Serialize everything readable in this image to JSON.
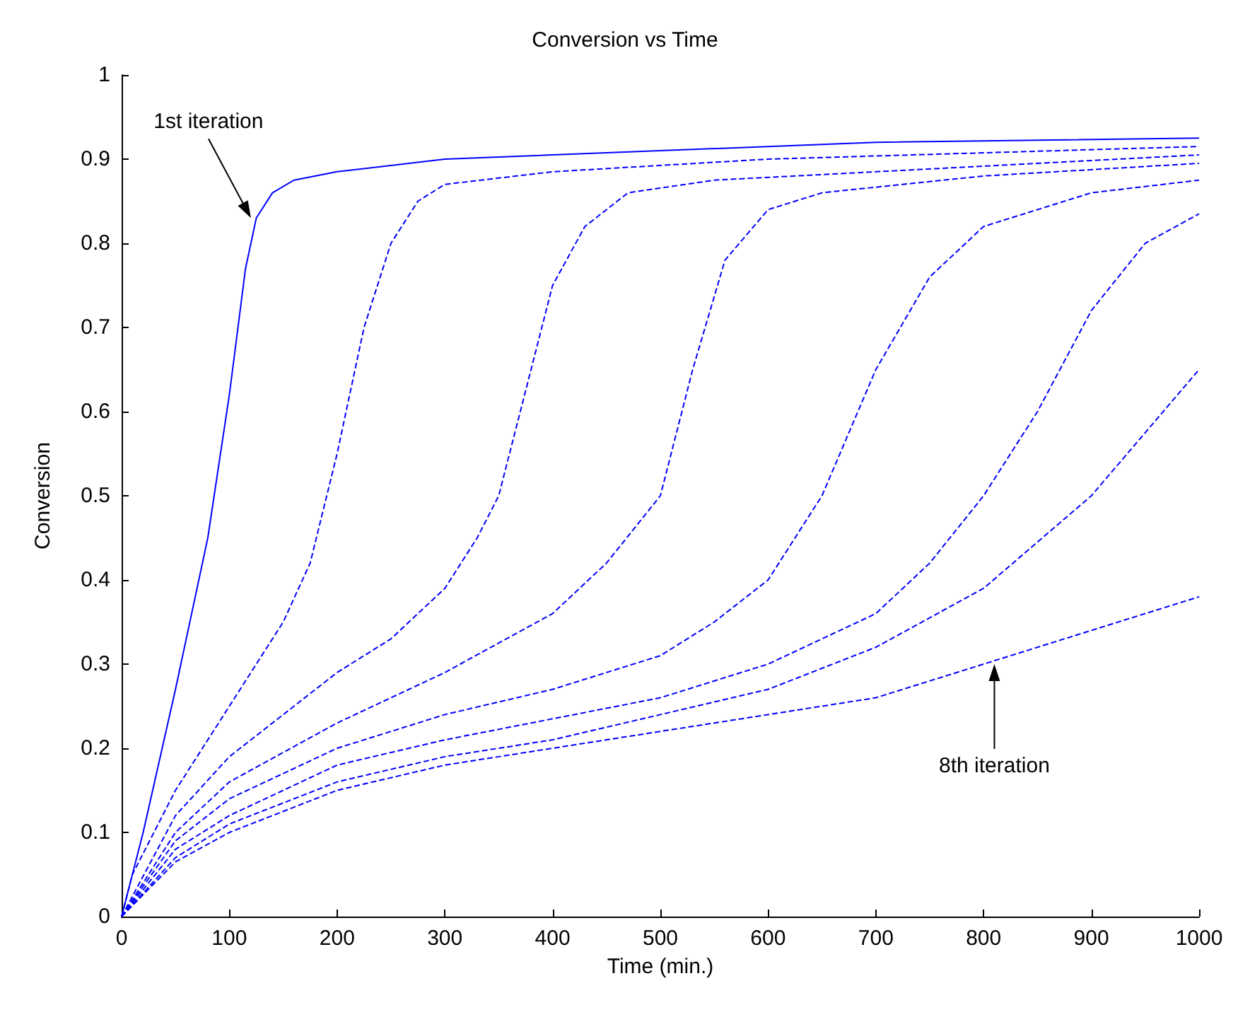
{
  "chart_data": {
    "type": "line",
    "title": "Conversion vs Time",
    "xlabel": "Time (min.)",
    "ylabel": "Conversion",
    "xlim": [
      0,
      1000
    ],
    "xticks": [
      0,
      100,
      200,
      300,
      400,
      500,
      600,
      700,
      800,
      900,
      1000
    ],
    "ylim": [
      0,
      1
    ],
    "yticks": [
      0,
      0.1,
      0.2,
      0.3,
      0.4,
      0.5,
      0.6,
      0.7,
      0.8,
      0.9,
      1
    ],
    "grid": false,
    "marker": "none",
    "series": [
      {
        "color": "#0000ff",
        "line_style": "solid",
        "x": [
          0,
          20,
          50,
          80,
          100,
          115,
          125,
          140,
          160,
          200,
          300,
          500,
          700,
          1000
        ],
        "values": [
          0,
          0.1,
          0.27,
          0.45,
          0.62,
          0.77,
          0.83,
          0.86,
          0.875,
          0.885,
          0.9,
          0.91,
          0.92,
          0.925
        ]
      },
      {
        "color": "#0000ff",
        "line_style": "dashed",
        "x": [
          0,
          10,
          50,
          100,
          150,
          175,
          200,
          225,
          250,
          275,
          300,
          400,
          600,
          1000
        ],
        "values": [
          0,
          0.05,
          0.15,
          0.25,
          0.35,
          0.42,
          0.55,
          0.7,
          0.8,
          0.85,
          0.87,
          0.885,
          0.9,
          0.915
        ]
      },
      {
        "color": "#0000ff",
        "line_style": "dashed",
        "x": [
          0,
          50,
          100,
          200,
          250,
          300,
          330,
          350,
          380,
          400,
          430,
          470,
          550,
          700,
          1000
        ],
        "values": [
          0,
          0.12,
          0.19,
          0.29,
          0.33,
          0.39,
          0.45,
          0.5,
          0.65,
          0.75,
          0.82,
          0.86,
          0.875,
          0.885,
          0.905
        ]
      },
      {
        "color": "#0000ff",
        "line_style": "dashed",
        "x": [
          0,
          50,
          100,
          200,
          300,
          400,
          450,
          500,
          530,
          560,
          600,
          650,
          800,
          1000
        ],
        "values": [
          0,
          0.1,
          0.16,
          0.23,
          0.29,
          0.36,
          0.42,
          0.5,
          0.65,
          0.78,
          0.84,
          0.86,
          0.88,
          0.895
        ]
      },
      {
        "color": "#0000ff",
        "line_style": "dashed",
        "x": [
          0,
          50,
          100,
          200,
          300,
          400,
          500,
          550,
          600,
          650,
          700,
          750,
          800,
          900,
          1000
        ],
        "values": [
          0,
          0.09,
          0.14,
          0.2,
          0.24,
          0.27,
          0.31,
          0.35,
          0.4,
          0.5,
          0.65,
          0.76,
          0.82,
          0.86,
          0.875
        ]
      },
      {
        "color": "#0000ff",
        "line_style": "dashed",
        "x": [
          0,
          50,
          100,
          200,
          300,
          400,
          500,
          600,
          700,
          750,
          800,
          850,
          900,
          950,
          1000
        ],
        "values": [
          0,
          0.08,
          0.12,
          0.18,
          0.21,
          0.235,
          0.26,
          0.3,
          0.36,
          0.42,
          0.5,
          0.6,
          0.72,
          0.8,
          0.835
        ]
      },
      {
        "color": "#0000ff",
        "line_style": "dashed",
        "x": [
          0,
          50,
          100,
          200,
          300,
          400,
          500,
          600,
          700,
          800,
          900,
          1000
        ],
        "values": [
          0,
          0.07,
          0.11,
          0.16,
          0.19,
          0.21,
          0.24,
          0.27,
          0.32,
          0.39,
          0.5,
          0.65
        ]
      },
      {
        "color": "#0000ff",
        "line_style": "dashed",
        "x": [
          0,
          50,
          100,
          200,
          300,
          400,
          500,
          600,
          700,
          800,
          900,
          1000
        ],
        "values": [
          0,
          0.065,
          0.1,
          0.15,
          0.18,
          0.2,
          0.22,
          0.24,
          0.26,
          0.3,
          0.34,
          0.38
        ]
      }
    ],
    "annotations": [
      {
        "text": "1st iteration",
        "x": 120,
        "y": 0.83
      },
      {
        "text": "8th iteration",
        "x": 810,
        "y": 0.3
      }
    ]
  }
}
